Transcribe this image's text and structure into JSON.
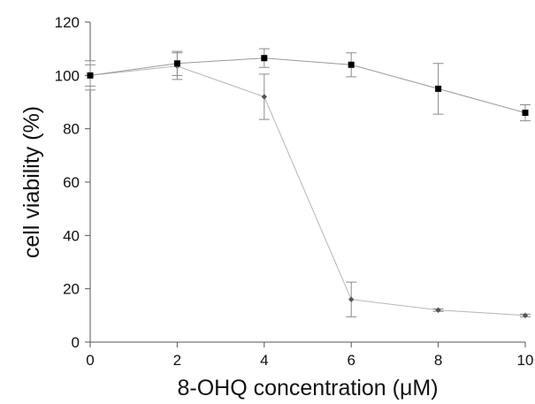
{
  "chart_data": {
    "type": "line",
    "title": "",
    "xlabel": "8-OHQ concentration (μM)",
    "ylabel": "cell viability (%)",
    "xlim": [
      0,
      10
    ],
    "ylim": [
      0,
      120
    ],
    "xticks": [
      0,
      2,
      4,
      6,
      8,
      10
    ],
    "yticks": [
      0,
      20,
      40,
      60,
      80,
      100,
      120
    ],
    "grid": false,
    "legend": "none",
    "x": [
      0,
      2,
      4,
      6,
      8,
      10
    ],
    "series": [
      {
        "marker": "square",
        "color": "#000000",
        "line_color": "#9a9a9a",
        "values": [
          100,
          104.5,
          106.5,
          104,
          95,
          86
        ],
        "errors": [
          5.5,
          4.5,
          3.5,
          4.5,
          9.5,
          3
        ]
      },
      {
        "marker": "diamond",
        "color": "#555555",
        "line_color": "#b5b5b5",
        "values": [
          100,
          103.5,
          92,
          16,
          12,
          10
        ],
        "errors": [
          4,
          5,
          8.5,
          6.5,
          0.5,
          0.5
        ]
      }
    ]
  }
}
